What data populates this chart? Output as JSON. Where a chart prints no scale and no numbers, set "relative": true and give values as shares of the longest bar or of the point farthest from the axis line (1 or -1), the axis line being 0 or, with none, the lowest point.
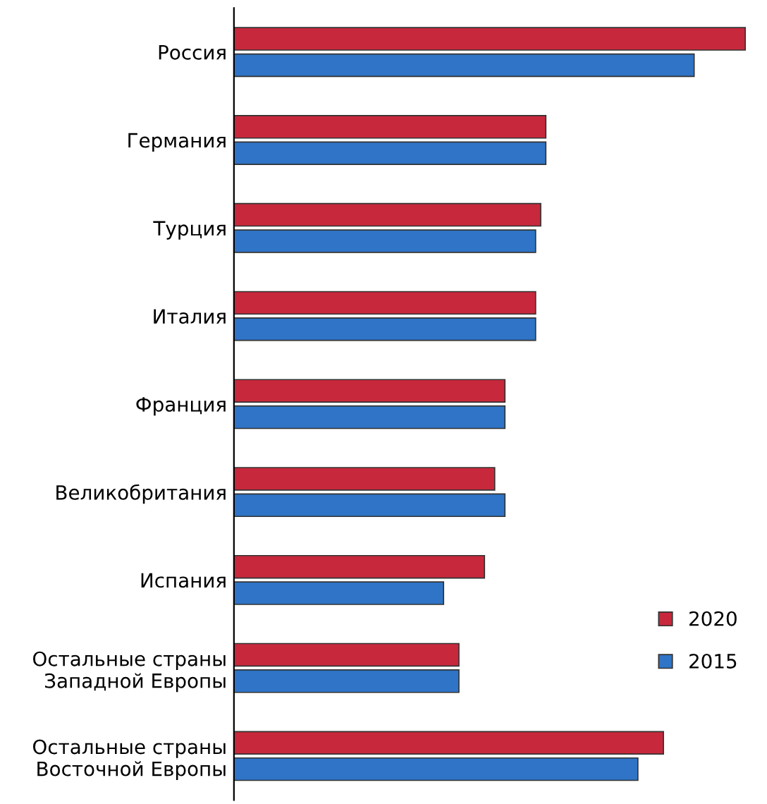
{
  "chart_data": {
    "type": "bar",
    "orientation": "horizontal",
    "relative": true,
    "tick_labels": "y",
    "legend": "right",
    "grid": false,
    "categories": [
      "Россия",
      "Германия",
      "Турция",
      "Италия",
      "Франция",
      "Великобритания",
      "Испания",
      "Остальные страны\nЗападной Европы",
      "Остальные страны\nВосточной Европы"
    ],
    "series": [
      {
        "name": "2020",
        "color": "#c8283c",
        "values": [
          1,
          0.61,
          0.6,
          0.59,
          0.53,
          0.51,
          0.49,
          0.44,
          0.84
        ]
      },
      {
        "name": "2015",
        "color": "#2f74c6",
        "values": [
          0.9,
          0.61,
          0.59,
          0.59,
          0.53,
          0.53,
          0.41,
          0.44,
          0.79
        ]
      }
    ]
  }
}
